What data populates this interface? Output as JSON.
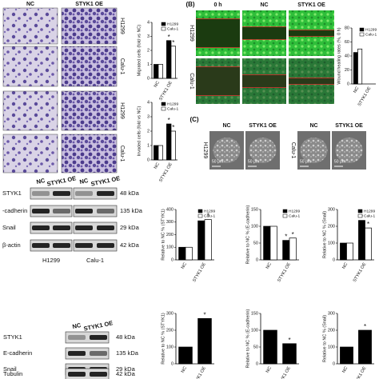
{
  "panels": {
    "A": {
      "columns": [
        "NC",
        "STYK1 OE"
      ],
      "rows": [
        "H1299",
        "Calu-1",
        "H1299",
        "Calu-1"
      ]
    },
    "B": {
      "label": "(B)",
      "columns": [
        "0 h",
        "NC",
        "STYK1 OE"
      ],
      "rows": [
        "H1299",
        "Calu-1"
      ]
    },
    "C": {
      "label": "(C)",
      "columns": [
        "NC",
        "STYK1 OE",
        "NC",
        "STYK1 OE"
      ],
      "rows": [
        "H1299",
        "Calu-1"
      ],
      "scale_bar": "50 μm"
    },
    "blot1": {
      "columns": [
        "NC",
        "STYK1 OE",
        "NC",
        "STYK1 OE"
      ],
      "cell_lines": [
        "H1299",
        "Calu-1"
      ],
      "rows": [
        {
          "label": "STYK1",
          "kda": "48 kDa"
        },
        {
          "label": "-cadherin",
          "kda": "135 kDa"
        },
        {
          "label": "Snail",
          "kda": "29 kDa"
        },
        {
          "label": "β-actin",
          "kda": "42 kDa"
        }
      ]
    },
    "blot2": {
      "columns": [
        "NC",
        "STYK1 OE"
      ],
      "rows": [
        {
          "label": "STYK1",
          "kda": "48 kDa"
        },
        {
          "label": "E-cadherin",
          "kda": "135 kDa"
        },
        {
          "label": "Snail",
          "kda": "29 kDa"
        },
        {
          "label": "Tubulin",
          "kda": "42 kDa"
        }
      ]
    }
  },
  "chart_data": [
    {
      "type": "bar",
      "ylabel": "Migrated cells (fold vs NC)",
      "categories": [
        "NC",
        "STYK1 OE"
      ],
      "sig": "*",
      "series": [
        {
          "name": "H1299",
          "color": "#000000",
          "values": [
            1,
            2.7
          ]
        },
        {
          "name": "Calu-1",
          "color": "#ffffff",
          "values": [
            1,
            2.3
          ]
        }
      ],
      "ylim": [
        0,
        4
      ],
      "yticks": [
        0,
        1,
        2,
        3,
        4
      ]
    },
    {
      "type": "bar",
      "ylabel": "Invaded cells (fold vs NC)",
      "categories": [
        "NC",
        "STYK1 OE"
      ],
      "sig": "*",
      "series": [
        {
          "name": "H1299",
          "color": "#000000",
          "values": [
            1,
            2.5
          ]
        },
        {
          "name": "Calu-1",
          "color": "#ffffff",
          "values": [
            1,
            2.0
          ]
        }
      ],
      "ylim": [
        0,
        4
      ],
      "yticks": [
        0,
        1,
        2,
        3,
        4
      ]
    },
    {
      "type": "bar",
      "ylabel": "Wound healing rates (%, 0 h)",
      "categories": [
        "NC",
        "STYK1 OE"
      ],
      "series": [
        {
          "name": "H1299",
          "color": "#000000",
          "values": [
            45,
            null
          ]
        },
        {
          "name": "Calu-1",
          "color": "#ffffff",
          "values": [
            50,
            null
          ]
        }
      ],
      "ylim": [
        0,
        80
      ],
      "yticks": [
        0,
        20,
        40,
        60,
        80
      ]
    },
    {
      "type": "bar",
      "ylabel": "Relative to NC % (STYK1)",
      "categories": [
        "NC",
        "STYK1 OE"
      ],
      "sig": "*",
      "series": [
        {
          "name": "H1299",
          "color": "#000000",
          "values": [
            100,
            310
          ]
        },
        {
          "name": "Calu-1",
          "color": "#ffffff",
          "values": [
            100,
            320
          ]
        }
      ],
      "ylim": [
        0,
        400
      ],
      "yticks": [
        0,
        100,
        200,
        300,
        400
      ]
    },
    {
      "type": "bar",
      "ylabel": "Relative to NC % (E-cadherin)",
      "categories": [
        "NC",
        "STYK1 OE"
      ],
      "sig": "*",
      "series": [
        {
          "name": "H1299",
          "color": "#000000",
          "values": [
            100,
            58
          ]
        },
        {
          "name": "Calu-1",
          "color": "#ffffff",
          "values": [
            100,
            65
          ]
        }
      ],
      "ylim": [
        0,
        150
      ],
      "yticks": [
        0,
        50,
        100,
        150
      ]
    },
    {
      "type": "bar",
      "ylabel": "Relative to NC % (Snail)",
      "categories": [
        "NC",
        "STYK1 OE"
      ],
      "sig": "*",
      "series": [
        {
          "name": "H1299",
          "color": "#000000",
          "values": [
            100,
            235
          ]
        },
        {
          "name": "Calu-1",
          "color": "#ffffff",
          "values": [
            100,
            190
          ]
        }
      ],
      "ylim": [
        0,
        300
      ],
      "yticks": [
        0,
        100,
        200,
        300
      ]
    },
    {
      "type": "bar",
      "ylabel": "Relative to NC % (STYK1)",
      "categories": [
        "NC",
        "STYK1 OE"
      ],
      "sig": "*",
      "series": [
        {
          "color": "#000000",
          "values": [
            100,
            270
          ]
        }
      ],
      "ylim": [
        0,
        300
      ],
      "yticks": [
        0,
        100,
        200,
        300
      ]
    },
    {
      "type": "bar",
      "ylabel": "Relative to NC % (E-cadherin)",
      "categories": [
        "NC",
        "STYK1 OE"
      ],
      "sig": "*",
      "series": [
        {
          "color": "#000000",
          "values": [
            100,
            60
          ]
        }
      ],
      "ylim": [
        0,
        150
      ],
      "yticks": [
        0,
        50,
        100,
        150
      ]
    },
    {
      "type": "bar",
      "ylabel": "Relative to NC % (Snail)",
      "categories": [
        "NC",
        "STYK1 OE"
      ],
      "sig": "*",
      "series": [
        {
          "color": "#000000",
          "values": [
            100,
            200
          ]
        }
      ],
      "ylim": [
        0,
        300
      ],
      "yticks": [
        0,
        100,
        200,
        300
      ]
    }
  ]
}
